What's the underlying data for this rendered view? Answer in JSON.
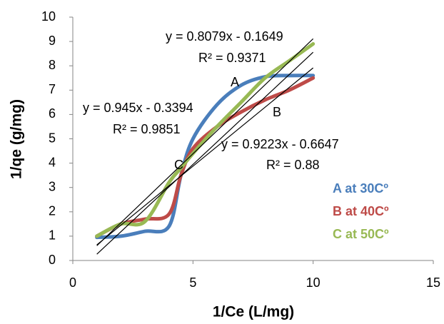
{
  "chart_data": {
    "type": "line",
    "x_label": "1/Ce (L/mg)",
    "y_label": "1/qe (g/mg)",
    "x": [
      1,
      2,
      3,
      4,
      4.5,
      5,
      6,
      7,
      8,
      9,
      10
    ],
    "series": [
      {
        "name": "A at 30Cº",
        "color": "#4a7ebb",
        "values": [
          0.95,
          1.0,
          1.2,
          1.4,
          3.5,
          5.0,
          6.4,
          7.2,
          7.55,
          7.6,
          7.6
        ]
      },
      {
        "name": "B at 40Cº",
        "color": "#be4b48",
        "values": [
          1.0,
          1.5,
          1.7,
          1.9,
          3.5,
          4.6,
          5.5,
          6.1,
          6.6,
          7.0,
          7.5
        ]
      },
      {
        "name": "C at 50Cº",
        "color": "#98b954",
        "values": [
          1.0,
          1.5,
          1.6,
          3.2,
          3.8,
          4.4,
          5.5,
          6.5,
          7.5,
          8.2,
          8.9
        ]
      }
    ],
    "trendlines": [
      {
        "equation": "y = 0.8079x - 0.1649",
        "r2": "R² = 0.9371",
        "slope": 0.8079,
        "intercept": -0.1649
      },
      {
        "equation": "y = 0.945x - 0.3394",
        "r2": "R² = 0.9851",
        "slope": 0.945,
        "intercept": -0.3394
      },
      {
        "equation": "y = 0.9223x - 0.6647",
        "r2": "R² = 0.88",
        "slope": 0.9223,
        "intercept": -0.6647
      }
    ],
    "annotations": [
      "A",
      "B",
      "C"
    ],
    "xlim": [
      0,
      15
    ],
    "xticks": [
      0,
      5,
      10,
      15
    ],
    "ylim": [
      0,
      10
    ],
    "yticks": [
      0,
      1,
      2,
      3,
      4,
      5,
      6,
      7,
      8,
      9,
      10
    ],
    "grid": false
  }
}
